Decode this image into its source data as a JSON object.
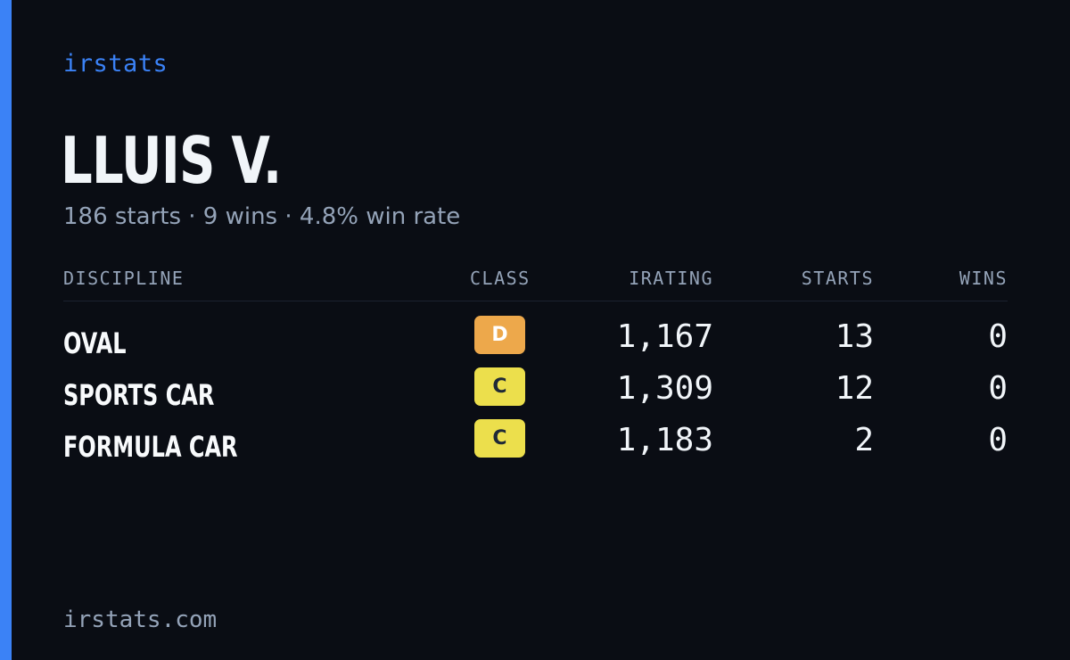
{
  "brand": "irstats",
  "driver": {
    "name": "LLUIS V.",
    "summary": "186 starts · 9 wins · 4.8% win rate"
  },
  "table": {
    "headers": {
      "discipline": "DISCIPLINE",
      "class": "CLASS",
      "irating": "IRATING",
      "starts": "STARTS",
      "wins": "WINS"
    },
    "rows": [
      {
        "discipline": "OVAL",
        "class": "D",
        "class_color": "#eda84b",
        "irating": "1,167",
        "starts": "13",
        "wins": "0"
      },
      {
        "discipline": "SPORTS CAR",
        "class": "C",
        "class_color": "#ecdf4c",
        "irating": "1,309",
        "starts": "12",
        "wins": "0"
      },
      {
        "discipline": "FORMULA CAR",
        "class": "C",
        "class_color": "#ecdf4c",
        "irating": "1,183",
        "starts": "2",
        "wins": "0"
      }
    ]
  },
  "footer": "irstats.com",
  "colors": {
    "background": "#0a0d14",
    "accent": "#3b82f6",
    "text": "#f1f5f9",
    "muted": "#94a3b8"
  }
}
